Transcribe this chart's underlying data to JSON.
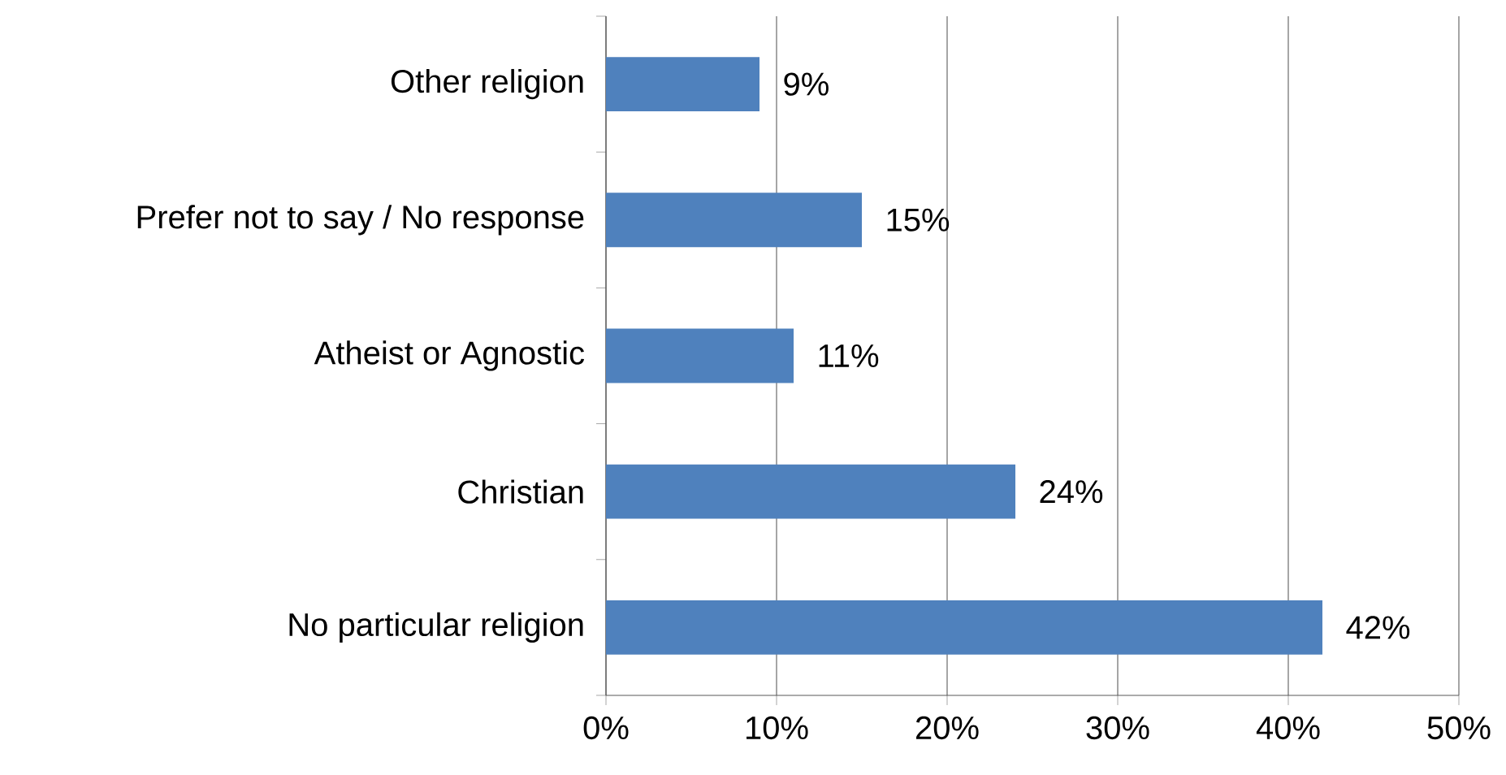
{
  "chart_data": {
    "type": "bar",
    "orientation": "horizontal",
    "categories": [
      "Other religion",
      "Prefer not to say / No response",
      "Atheist or Agnostic",
      "Christian",
      "No particular religion"
    ],
    "values": [
      9,
      15,
      11,
      24,
      42
    ],
    "value_labels": [
      "9%",
      "15%",
      "11%",
      "24%",
      "42%"
    ],
    "color": "#4f81bd",
    "xlim": [
      0,
      50
    ],
    "xticks": [
      {
        "value": 0,
        "label": "0%"
      },
      {
        "value": 10,
        "label": "10%"
      },
      {
        "value": 20,
        "label": "20%"
      },
      {
        "value": 30,
        "label": "30%"
      },
      {
        "value": 40,
        "label": "40%"
      },
      {
        "value": 50,
        "label": "50%"
      }
    ],
    "grid": "x"
  }
}
